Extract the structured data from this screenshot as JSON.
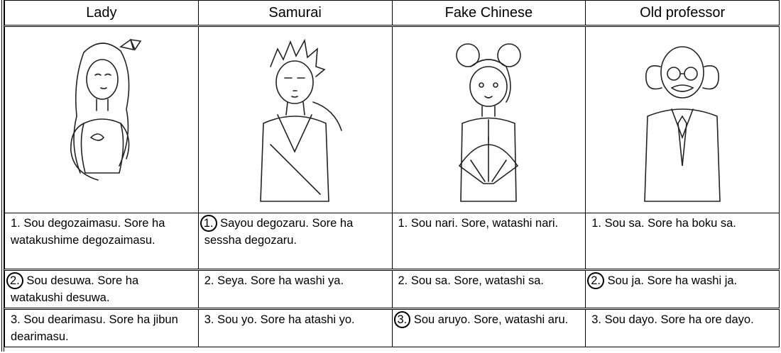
{
  "table": {
    "header": [
      "Lady",
      "Samurai",
      "Fake Chinese",
      "Old professor"
    ],
    "rows": [
      [
        {
          "number": "1.",
          "text": "Sou degozaimasu. Sore ha watakushime degozaimasu."
        },
        {
          "number": "1.",
          "text": "Sayou degozaru. Sore ha sessha degozaru.",
          "circled": true
        },
        {
          "number": "1.",
          "text": "Sou nari. Sore, watashi nari."
        },
        {
          "number": "1.",
          "text": "Sou sa. Sore ha boku sa."
        }
      ],
      [
        {
          "number": "2.",
          "text": "Sou desuwa. Sore ha watakushi desuwa.",
          "circled": true
        },
        {
          "number": "2.",
          "text": "Seya. Sore ha washi ya."
        },
        {
          "number": "2.",
          "text": "Sou sa. Sore, watashi sa."
        },
        {
          "number": "2.",
          "text": "Sou ja. Sore ha washi ja.",
          "circled": true
        }
      ],
      [
        {
          "number": "3.",
          "text": "Sou dearimasu. Sore ha jibun dearimasu."
        },
        {
          "number": "3.",
          "text": "Sou yo. Sore ha atashi yo."
        },
        {
          "number": "3.",
          "text": "Sou aruyo. Sore, watashi aru.",
          "circled": true
        },
        {
          "number": "3.",
          "text": "Sou dayo. Sore ha ore dayo."
        }
      ]
    ]
  }
}
